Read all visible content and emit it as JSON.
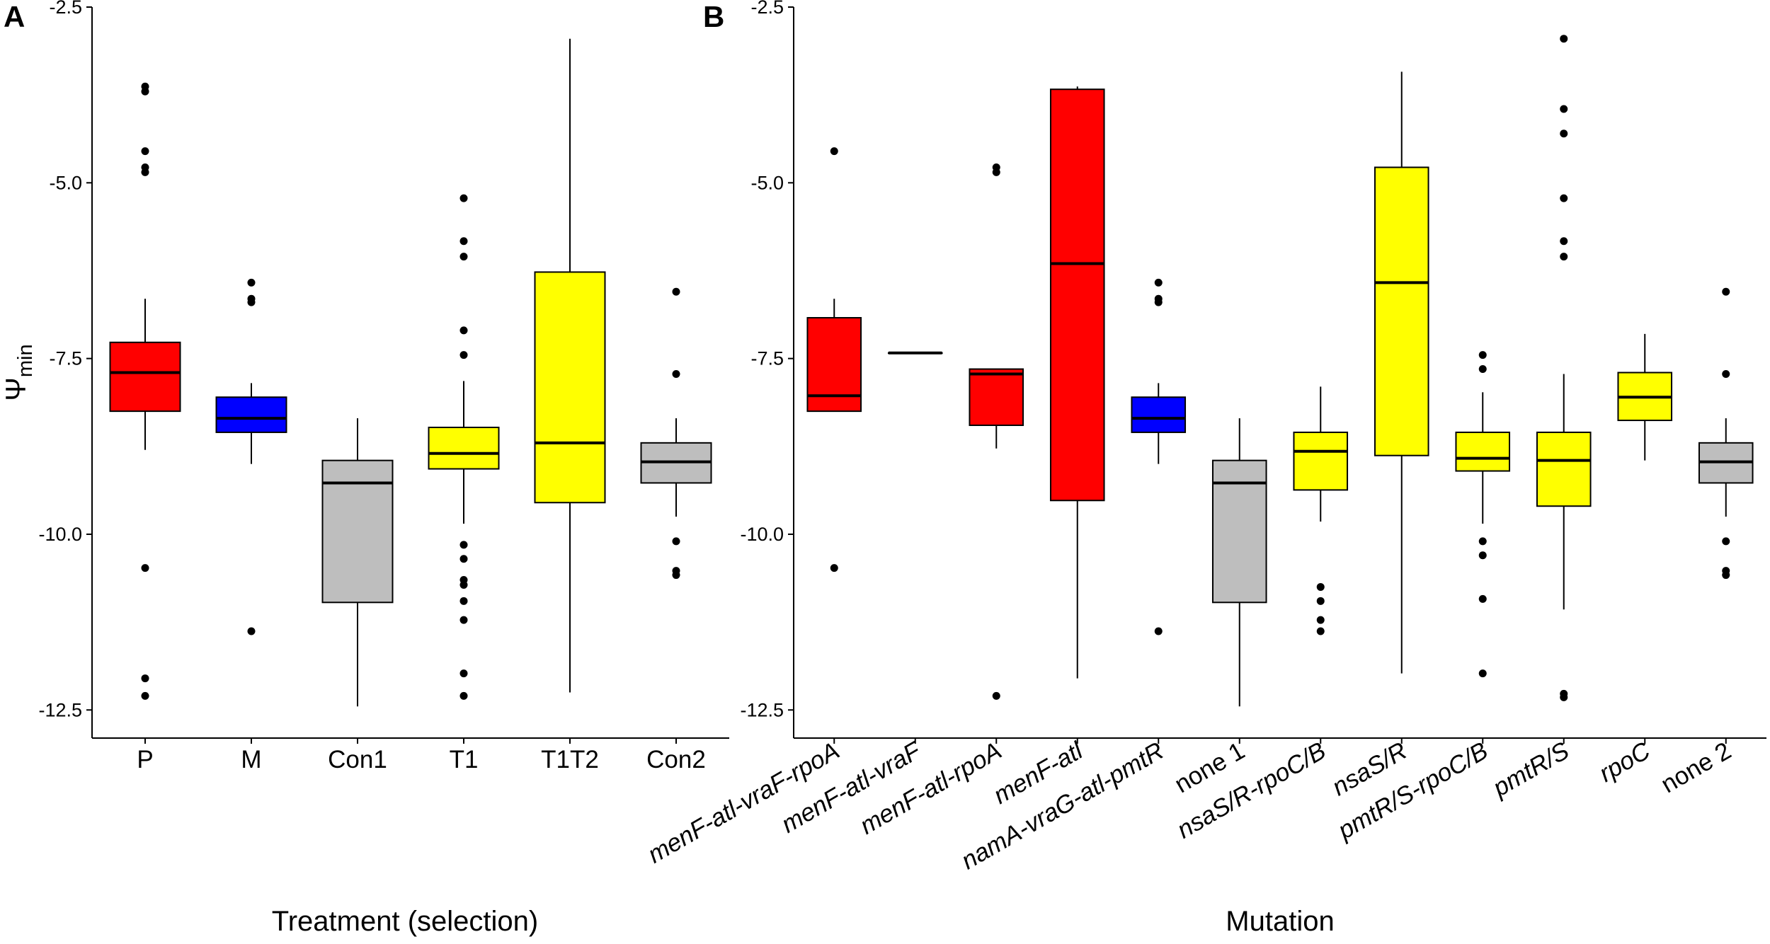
{
  "chart_data": [
    {
      "type": "boxplot",
      "panel_label": "A",
      "xlabel": "Treatment (selection)",
      "ylabel": "Ψ",
      "ylabel_subscript": "min",
      "ylim": [
        -12.9,
        -2.5
      ],
      "yticks": [
        -2.5,
        -5.0,
        -7.5,
        -10.0,
        -12.5
      ],
      "ytick_labels": [
        "-2.5",
        "-5.0",
        "-7.5",
        "-10.0",
        "-12.5"
      ],
      "categories": [
        "P",
        "M",
        "Con1",
        "T1",
        "T1T2",
        "Con2"
      ],
      "boxes": [
        {
          "label": "P",
          "color": "#ff0000",
          "q1": -8.25,
          "median": -7.7,
          "q3": -7.27,
          "whisker_low": -8.8,
          "whisker_high": -6.65,
          "outliers": [
            -3.63,
            -3.7,
            -4.55,
            -4.78,
            -4.85,
            -10.48,
            -12.05,
            -12.3
          ]
        },
        {
          "label": "M",
          "color": "#0000ff",
          "q1": -8.55,
          "median": -8.35,
          "q3": -8.05,
          "whisker_low": -9.0,
          "whisker_high": -7.85,
          "outliers": [
            -6.42,
            -6.65,
            -6.7,
            -11.38
          ]
        },
        {
          "label": "Con1",
          "color": "#bebebe",
          "q1": -10.97,
          "median": -9.27,
          "q3": -8.95,
          "whisker_low": -12.45,
          "whisker_high": -8.35,
          "outliers": []
        },
        {
          "label": "T1",
          "color": "#ffff00",
          "q1": -9.07,
          "median": -8.85,
          "q3": -8.48,
          "whisker_low": -9.85,
          "whisker_high": -7.82,
          "outliers": [
            -5.22,
            -5.83,
            -6.05,
            -7.1,
            -7.45,
            -10.15,
            -10.35,
            -10.65,
            -10.72,
            -10.95,
            -11.22,
            -11.98,
            -12.3
          ]
        },
        {
          "label": "T1T2",
          "color": "#ffff00",
          "q1": -9.55,
          "median": -8.7,
          "q3": -6.27,
          "whisker_low": -12.25,
          "whisker_high": -2.95,
          "outliers": []
        },
        {
          "label": "Con2",
          "color": "#bebebe",
          "q1": -9.27,
          "median": -8.97,
          "q3": -8.7,
          "whisker_low": -9.75,
          "whisker_high": -8.35,
          "outliers": [
            -6.55,
            -7.72,
            -10.1,
            -10.52,
            -10.58
          ]
        }
      ]
    },
    {
      "type": "boxplot",
      "panel_label": "B",
      "xlabel": "Mutation",
      "ylim": [
        -12.9,
        -2.5
      ],
      "yticks": [
        -2.5,
        -5.0,
        -7.5,
        -10.0,
        -12.5
      ],
      "ytick_labels": [
        "-2.5",
        "-5.0",
        "-7.5",
        "-10.0",
        "-12.5"
      ],
      "categories": [
        "menF-atl-vraF-rpoA",
        "menF-atl-vraF",
        "menF-atl-rpoA",
        "menF-atl",
        "namA-vraG-atl-pmtR",
        "none 1",
        "nsaS/R-rpoC/B",
        "nsaS/R",
        "pmtR/S-rpoC/B",
        "pmtR/S",
        "rpoC",
        "none 2"
      ],
      "category_italic": [
        true,
        true,
        true,
        true,
        true,
        false,
        true,
        true,
        true,
        true,
        true,
        false
      ],
      "boxes": [
        {
          "label": "menF-atl-vraF-rpoA",
          "color": "#ff0000",
          "q1": -8.25,
          "median": -8.03,
          "q3": -6.92,
          "whisker_low": -8.25,
          "whisker_high": -6.65,
          "outliers": [
            -4.55,
            -10.48
          ]
        },
        {
          "label": "menF-atl-vraF",
          "color": "#ff0000",
          "q1": -7.42,
          "median": -7.42,
          "q3": -7.42,
          "whisker_low": -7.42,
          "whisker_high": -7.42,
          "outliers": []
        },
        {
          "label": "menF-atl-rpoA",
          "color": "#ff0000",
          "q1": -8.45,
          "median": -7.72,
          "q3": -7.65,
          "whisker_low": -8.78,
          "whisker_high": -7.65,
          "outliers": [
            -4.78,
            -4.85,
            -12.3
          ]
        },
        {
          "label": "menF-atl",
          "color": "#ff0000",
          "q1": -9.52,
          "median": -6.15,
          "q3": -3.67,
          "whisker_low": -12.05,
          "whisker_high": -3.63,
          "outliers": []
        },
        {
          "label": "namA-vraG-atl-pmtR",
          "color": "#0000ff",
          "q1": -8.55,
          "median": -8.35,
          "q3": -8.05,
          "whisker_low": -9.0,
          "whisker_high": -7.85,
          "outliers": [
            -6.42,
            -6.65,
            -6.7,
            -11.38
          ]
        },
        {
          "label": "none 1",
          "color": "#bebebe",
          "q1": -10.97,
          "median": -9.27,
          "q3": -8.95,
          "whisker_low": -12.45,
          "whisker_high": -8.35,
          "outliers": []
        },
        {
          "label": "nsaS/R-rpoC/B",
          "color": "#ffff00",
          "q1": -9.37,
          "median": -8.82,
          "q3": -8.55,
          "whisker_low": -9.82,
          "whisker_high": -7.9,
          "outliers": [
            -10.75,
            -10.95,
            -11.22,
            -11.38
          ]
        },
        {
          "label": "nsaS/R",
          "color": "#ffff00",
          "q1": -8.88,
          "median": -6.42,
          "q3": -4.78,
          "whisker_low": -11.98,
          "whisker_high": -3.42,
          "outliers": []
        },
        {
          "label": "pmtR/S-rpoC/B",
          "color": "#ffff00",
          "q1": -9.1,
          "median": -8.92,
          "q3": -8.55,
          "whisker_low": -9.85,
          "whisker_high": -7.98,
          "outliers": [
            -7.45,
            -7.65,
            -10.1,
            -10.3,
            -10.92,
            -11.98
          ]
        },
        {
          "label": "pmtR/S",
          "color": "#ffff00",
          "q1": -9.6,
          "median": -8.95,
          "q3": -8.55,
          "whisker_low": -11.07,
          "whisker_high": -7.72,
          "outliers": [
            -2.95,
            -3.95,
            -4.3,
            -5.22,
            -5.83,
            -6.05,
            -12.27,
            -12.32
          ]
        },
        {
          "label": "rpoC",
          "color": "#ffff00",
          "q1": -8.38,
          "median": -8.05,
          "q3": -7.7,
          "whisker_low": -8.95,
          "whisker_high": -7.15,
          "outliers": []
        },
        {
          "label": "none 2",
          "color": "#bebebe",
          "q1": -9.27,
          "median": -8.97,
          "q3": -8.7,
          "whisker_low": -9.75,
          "whisker_high": -8.35,
          "outliers": [
            -6.55,
            -7.72,
            -10.1,
            -10.52,
            -10.58
          ]
        }
      ]
    }
  ]
}
